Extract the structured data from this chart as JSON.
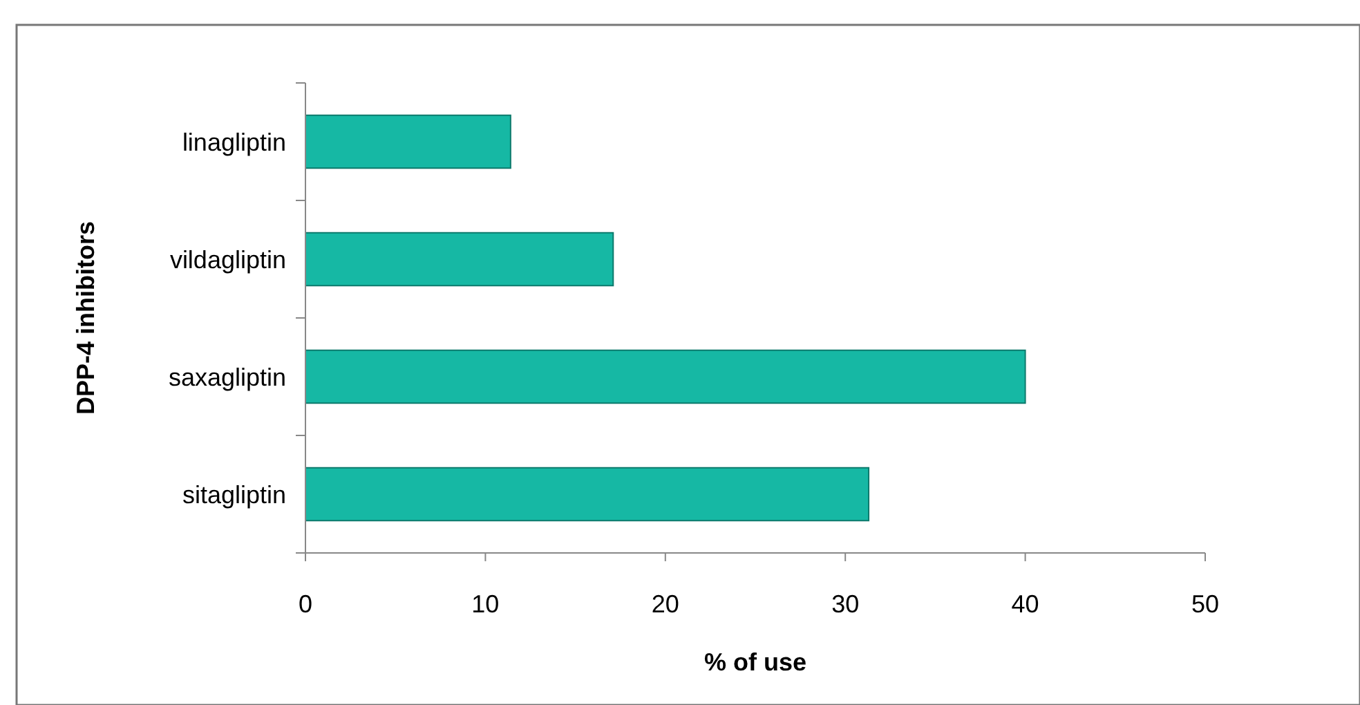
{
  "chart_data": {
    "type": "bar",
    "orientation": "horizontal",
    "xlabel": "% of use",
    "ylabel": "DPP-4 inhibitors",
    "categories": [
      "linagliptin",
      "vildagliptin",
      "saxagliptin",
      "sitagliptin"
    ],
    "values": [
      11.4,
      17.1,
      40,
      31.3
    ],
    "color": "#16b8a4",
    "xlim": [
      0,
      50
    ],
    "xticks": [
      0,
      10,
      20,
      30,
      40,
      50
    ],
    "grid": false
  }
}
